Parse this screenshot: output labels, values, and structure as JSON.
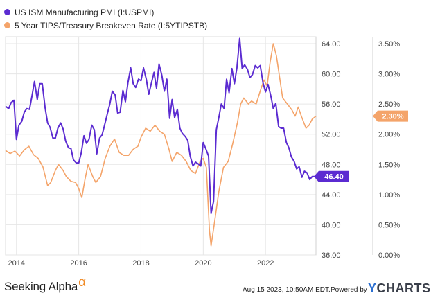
{
  "chart_data": {
    "type": "line",
    "title": "",
    "legend": [
      {
        "name": "US ISM Manufacturing PMI (I:USPMI)",
        "color": "#5b2bd1"
      },
      {
        "name": "5 Year TIPS/Treasury Breakeven Rate (I:5YTIPSTB)",
        "color": "#f4a46a"
      }
    ],
    "x_ticks": [
      "2014",
      "2016",
      "2018",
      "2020",
      "2022"
    ],
    "x_range": [
      2013.65,
      2023.62
    ],
    "left_axis": {
      "ticks": [
        "36.00",
        "40.00",
        "44.00",
        "48.00",
        "52.00",
        "56.00",
        "60.00",
        "64.00"
      ],
      "range": [
        36,
        64
      ]
    },
    "right_axis": {
      "ticks": [
        "0.00%",
        "0.50%",
        "1.00%",
        "1.50%",
        "2.00%",
        "2.50%",
        "3.00%",
        "3.50%"
      ],
      "range": [
        0,
        3.5
      ]
    },
    "series": [
      {
        "name": "US ISM Manufacturing PMI (I:USPMI)",
        "axis": "left",
        "color": "#5b2bd1",
        "last_label": "46.40",
        "points": [
          [
            2013.65,
            55.7
          ],
          [
            2013.75,
            55.4
          ],
          [
            2013.83,
            56.2
          ],
          [
            2013.92,
            56.5
          ],
          [
            2014.0,
            51.3
          ],
          [
            2014.08,
            53.2
          ],
          [
            2014.17,
            53.7
          ],
          [
            2014.25,
            54.9
          ],
          [
            2014.33,
            55.4
          ],
          [
            2014.42,
            55.3
          ],
          [
            2014.5,
            57.1
          ],
          [
            2014.58,
            59.0
          ],
          [
            2014.67,
            56.6
          ],
          [
            2014.75,
            58.7
          ],
          [
            2014.83,
            58.7
          ],
          [
            2014.92,
            55.5
          ],
          [
            2015.0,
            53.5
          ],
          [
            2015.08,
            52.9
          ],
          [
            2015.17,
            51.5
          ],
          [
            2015.25,
            51.5
          ],
          [
            2015.33,
            52.8
          ],
          [
            2015.42,
            53.5
          ],
          [
            2015.5,
            52.7
          ],
          [
            2015.58,
            51.1
          ],
          [
            2015.67,
            50.2
          ],
          [
            2015.75,
            50.1
          ],
          [
            2015.83,
            48.6
          ],
          [
            2015.92,
            48.2
          ],
          [
            2016.0,
            48.2
          ],
          [
            2016.08,
            49.5
          ],
          [
            2016.17,
            51.8
          ],
          [
            2016.25,
            50.8
          ],
          [
            2016.33,
            51.3
          ],
          [
            2016.42,
            53.2
          ],
          [
            2016.5,
            52.6
          ],
          [
            2016.58,
            49.4
          ],
          [
            2016.67,
            51.5
          ],
          [
            2016.75,
            51.9
          ],
          [
            2016.83,
            53.2
          ],
          [
            2016.92,
            54.7
          ],
          [
            2017.0,
            56.0
          ],
          [
            2017.08,
            57.7
          ],
          [
            2017.17,
            57.2
          ],
          [
            2017.25,
            54.8
          ],
          [
            2017.33,
            54.9
          ],
          [
            2017.42,
            57.8
          ],
          [
            2017.5,
            56.3
          ],
          [
            2017.58,
            58.8
          ],
          [
            2017.67,
            60.8
          ],
          [
            2017.75,
            58.7
          ],
          [
            2017.83,
            58.2
          ],
          [
            2017.92,
            59.3
          ],
          [
            2018.0,
            59.1
          ],
          [
            2018.08,
            60.8
          ],
          [
            2018.17,
            59.3
          ],
          [
            2018.25,
            57.3
          ],
          [
            2018.33,
            58.7
          ],
          [
            2018.42,
            60.2
          ],
          [
            2018.5,
            58.1
          ],
          [
            2018.58,
            61.3
          ],
          [
            2018.67,
            59.8
          ],
          [
            2018.75,
            57.7
          ],
          [
            2018.83,
            59.3
          ],
          [
            2018.92,
            54.1
          ],
          [
            2019.0,
            56.6
          ],
          [
            2019.08,
            54.2
          ],
          [
            2019.17,
            55.3
          ],
          [
            2019.25,
            52.8
          ],
          [
            2019.33,
            52.1
          ],
          [
            2019.42,
            51.7
          ],
          [
            2019.5,
            51.2
          ],
          [
            2019.58,
            49.1
          ],
          [
            2019.67,
            47.8
          ],
          [
            2019.75,
            48.3
          ],
          [
            2019.83,
            48.1
          ],
          [
            2019.92,
            47.8
          ],
          [
            2020.0,
            50.9
          ],
          [
            2020.08,
            50.1
          ],
          [
            2020.17,
            49.1
          ],
          [
            2020.25,
            41.5
          ],
          [
            2020.33,
            43.1
          ],
          [
            2020.42,
            52.6
          ],
          [
            2020.5,
            54.2
          ],
          [
            2020.58,
            56.0
          ],
          [
            2020.67,
            55.4
          ],
          [
            2020.75,
            59.3
          ],
          [
            2020.83,
            57.5
          ],
          [
            2020.92,
            60.7
          ],
          [
            2021.0,
            58.7
          ],
          [
            2021.08,
            60.8
          ],
          [
            2021.17,
            64.7
          ],
          [
            2021.25,
            60.7
          ],
          [
            2021.33,
            61.2
          ],
          [
            2021.42,
            60.6
          ],
          [
            2021.5,
            59.5
          ],
          [
            2021.58,
            59.9
          ],
          [
            2021.67,
            61.1
          ],
          [
            2021.75,
            60.8
          ],
          [
            2021.83,
            61.1
          ],
          [
            2021.92,
            58.8
          ],
          [
            2022.0,
            57.6
          ],
          [
            2022.08,
            58.6
          ],
          [
            2022.17,
            57.1
          ],
          [
            2022.25,
            55.4
          ],
          [
            2022.33,
            56.1
          ],
          [
            2022.42,
            53.0
          ],
          [
            2022.5,
            52.8
          ],
          [
            2022.58,
            52.8
          ],
          [
            2022.67,
            50.9
          ],
          [
            2022.75,
            50.2
          ],
          [
            2022.83,
            49.0
          ],
          [
            2022.92,
            48.4
          ],
          [
            2023.0,
            47.4
          ],
          [
            2023.08,
            47.7
          ],
          [
            2023.17,
            46.3
          ],
          [
            2023.25,
            47.1
          ],
          [
            2023.33,
            46.9
          ],
          [
            2023.42,
            46.0
          ],
          [
            2023.5,
            46.4
          ],
          [
            2023.62,
            46.4
          ]
        ]
      },
      {
        "name": "5 Year TIPS/Treasury Breakeven Rate (I:5YTIPSTB)",
        "axis": "right",
        "color": "#f4a46a",
        "last_label": "2.30%",
        "points": [
          [
            2013.65,
            1.73
          ],
          [
            2013.8,
            1.68
          ],
          [
            2013.95,
            1.72
          ],
          [
            2014.1,
            1.64
          ],
          [
            2014.25,
            1.74
          ],
          [
            2014.4,
            1.8
          ],
          [
            2014.55,
            1.66
          ],
          [
            2014.7,
            1.6
          ],
          [
            2014.85,
            1.46
          ],
          [
            2015.0,
            1.15
          ],
          [
            2015.1,
            1.2
          ],
          [
            2015.25,
            1.4
          ],
          [
            2015.35,
            1.5
          ],
          [
            2015.5,
            1.4
          ],
          [
            2015.6,
            1.3
          ],
          [
            2015.75,
            1.22
          ],
          [
            2015.9,
            1.2
          ],
          [
            2016.0,
            1.1
          ],
          [
            2016.1,
            0.95
          ],
          [
            2016.2,
            1.25
          ],
          [
            2016.3,
            1.5
          ],
          [
            2016.45,
            1.3
          ],
          [
            2016.55,
            1.2
          ],
          [
            2016.7,
            1.3
          ],
          [
            2016.85,
            1.6
          ],
          [
            2017.0,
            1.8
          ],
          [
            2017.15,
            1.92
          ],
          [
            2017.3,
            1.7
          ],
          [
            2017.45,
            1.65
          ],
          [
            2017.6,
            1.65
          ],
          [
            2017.75,
            1.75
          ],
          [
            2017.9,
            1.8
          ],
          [
            2018.0,
            1.95
          ],
          [
            2018.15,
            2.1
          ],
          [
            2018.3,
            2.05
          ],
          [
            2018.45,
            2.15
          ],
          [
            2018.6,
            2.05
          ],
          [
            2018.75,
            2.0
          ],
          [
            2018.9,
            1.75
          ],
          [
            2019.0,
            1.55
          ],
          [
            2019.15,
            1.7
          ],
          [
            2019.3,
            1.65
          ],
          [
            2019.45,
            1.55
          ],
          [
            2019.6,
            1.4
          ],
          [
            2019.75,
            1.35
          ],
          [
            2019.9,
            1.55
          ],
          [
            2020.0,
            1.6
          ],
          [
            2020.1,
            1.45
          ],
          [
            2020.2,
            0.4
          ],
          [
            2020.25,
            0.15
          ],
          [
            2020.35,
            0.5
          ],
          [
            2020.5,
            1.05
          ],
          [
            2020.65,
            1.45
          ],
          [
            2020.8,
            1.55
          ],
          [
            2020.95,
            1.85
          ],
          [
            2021.1,
            2.2
          ],
          [
            2021.2,
            2.5
          ],
          [
            2021.3,
            2.6
          ],
          [
            2021.45,
            2.5
          ],
          [
            2021.55,
            2.55
          ],
          [
            2021.7,
            2.5
          ],
          [
            2021.85,
            2.75
          ],
          [
            2021.95,
            2.9
          ],
          [
            2022.05,
            2.8
          ],
          [
            2022.15,
            3.2
          ],
          [
            2022.25,
            3.5
          ],
          [
            2022.35,
            3.3
          ],
          [
            2022.45,
            2.95
          ],
          [
            2022.55,
            2.6
          ],
          [
            2022.7,
            2.5
          ],
          [
            2022.85,
            2.4
          ],
          [
            2022.95,
            2.3
          ],
          [
            2023.05,
            2.45
          ],
          [
            2023.15,
            2.3
          ],
          [
            2023.3,
            2.1
          ],
          [
            2023.4,
            2.15
          ],
          [
            2023.5,
            2.25
          ],
          [
            2023.62,
            2.3
          ]
        ]
      }
    ]
  },
  "footer": {
    "brand": "Seeking Alpha",
    "brand_mark": "α",
    "timestamp": "Aug 15 2023, 10:50AM EDT.",
    "powered_by": "Powered by",
    "ycharts_y": "Y",
    "ycharts_rest": "CHARTS"
  }
}
